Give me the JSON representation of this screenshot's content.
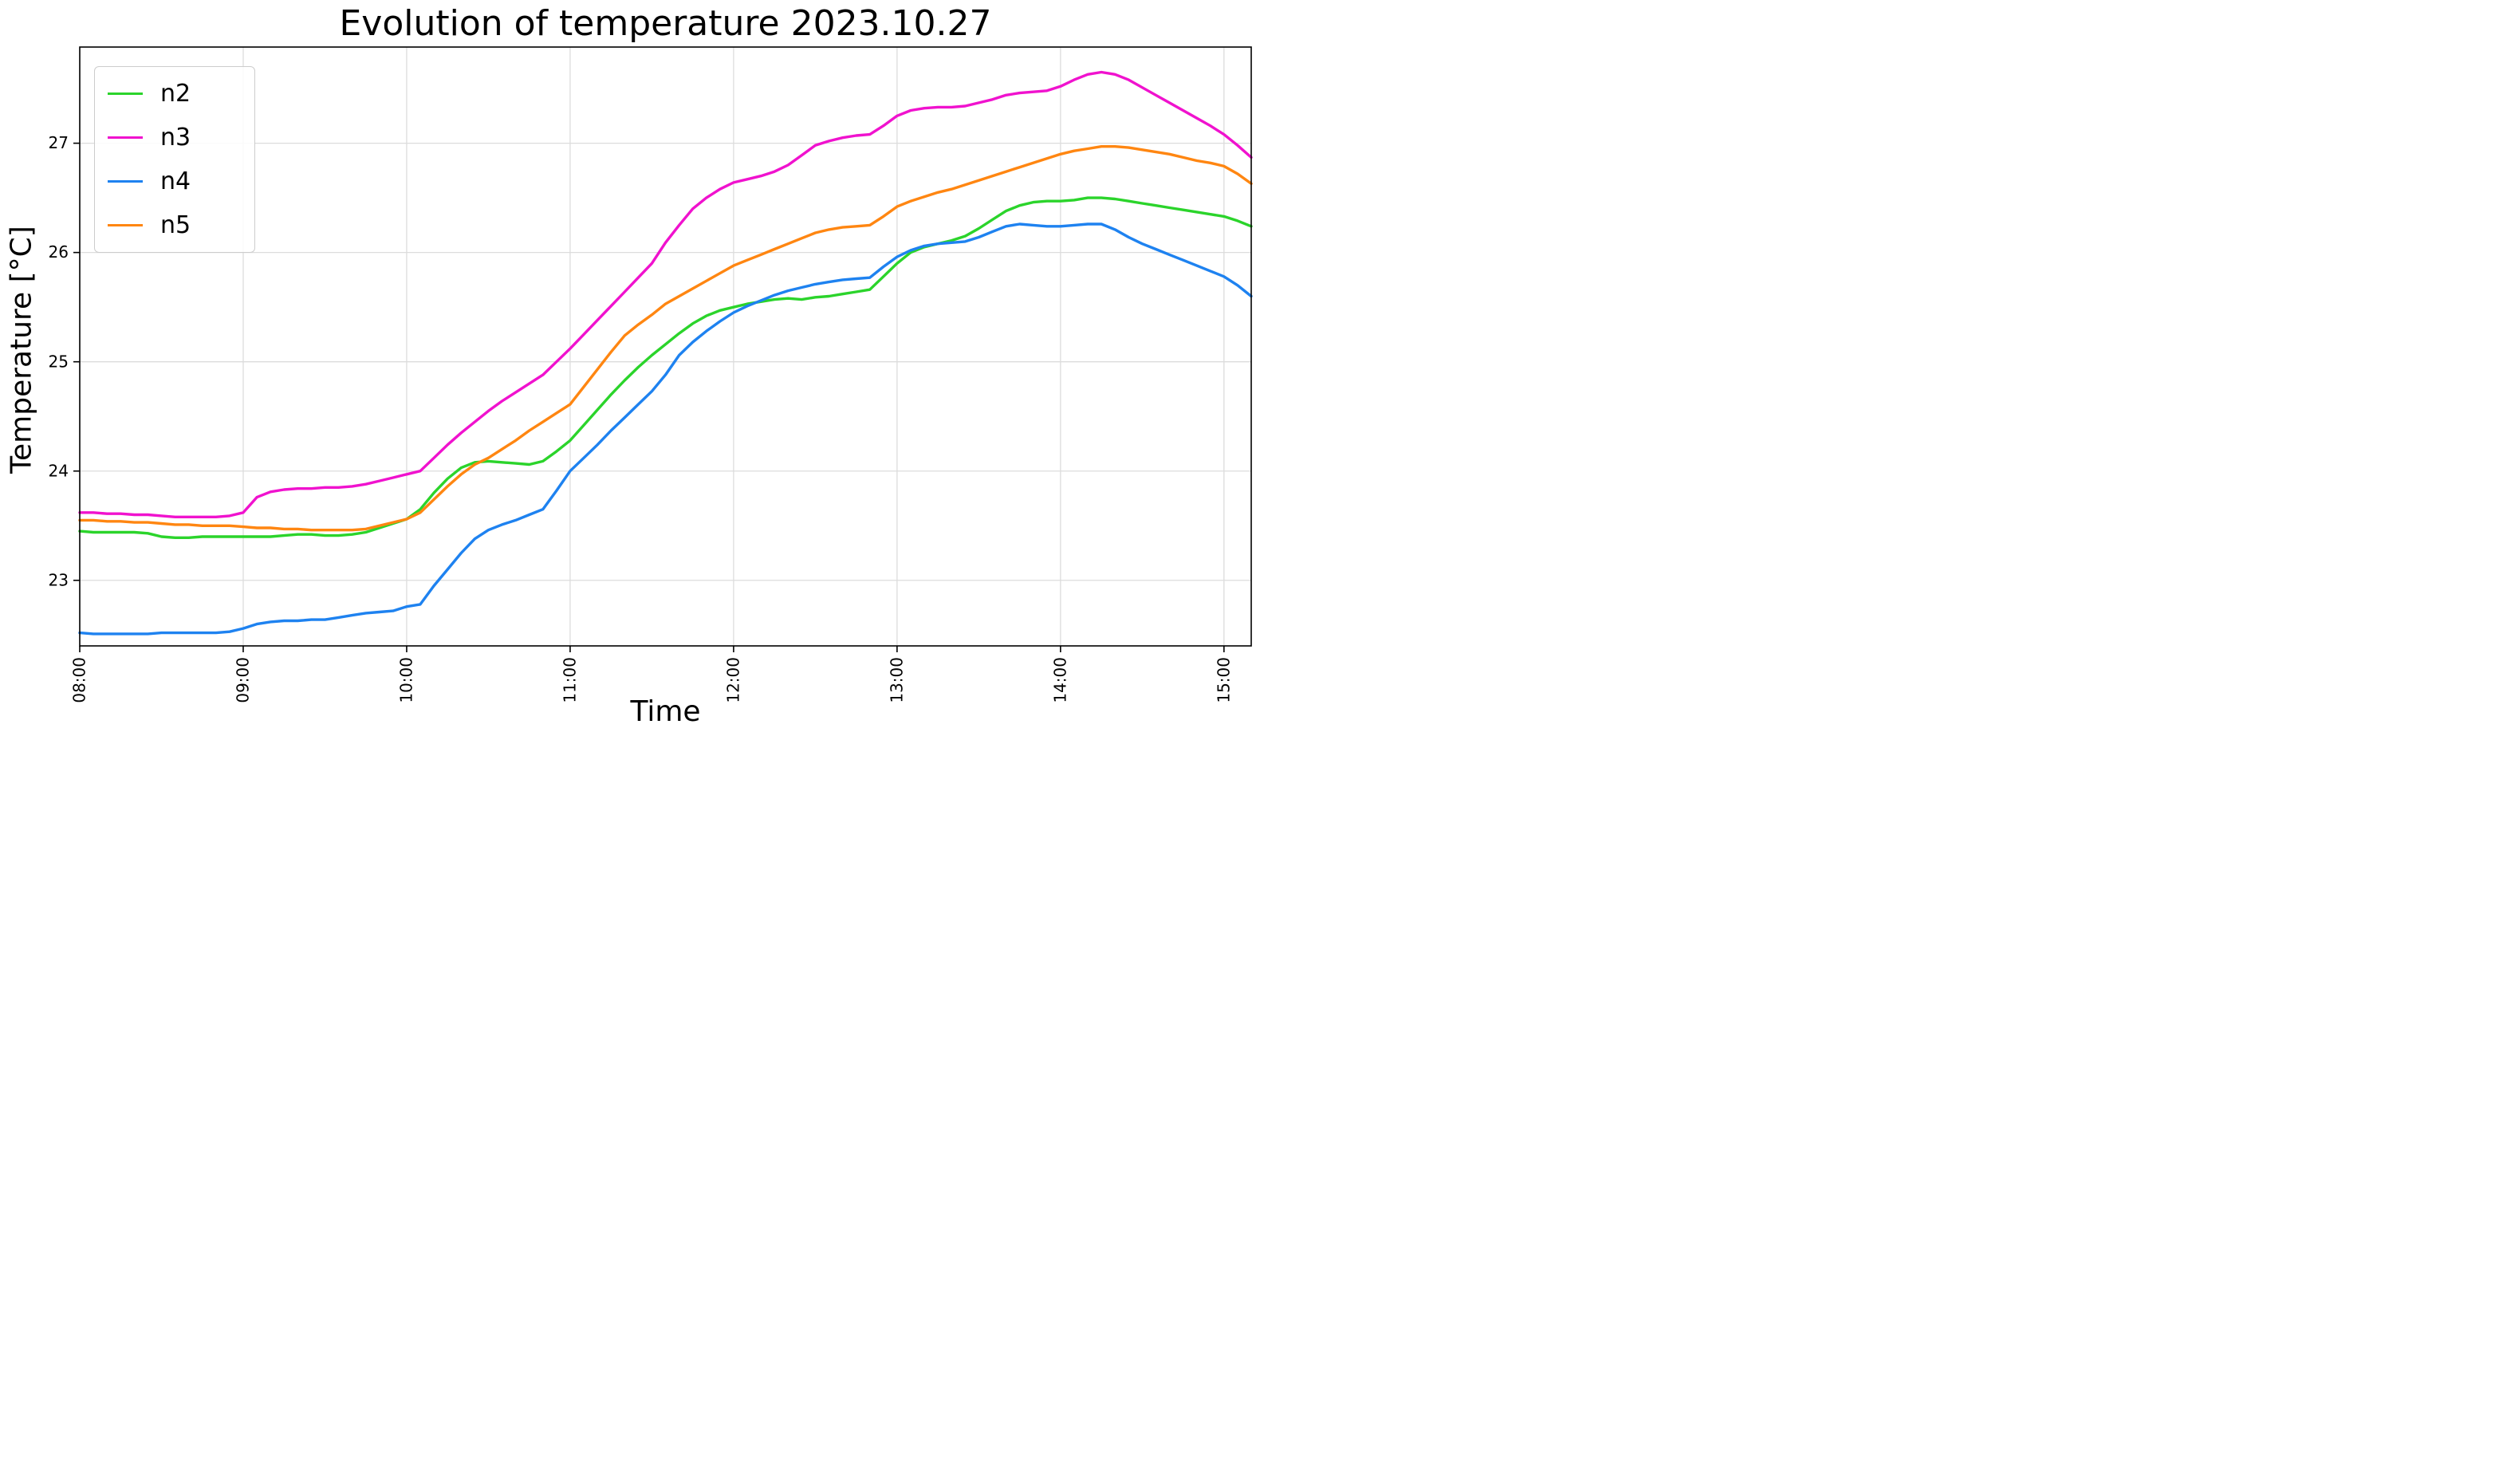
{
  "title": "Evolution of temperature 2023.10.27",
  "chart_data": {
    "type": "line",
    "title": "Evolution of temperature 2023.10.27",
    "xlabel": "Time",
    "ylabel": "Temperature [°C]",
    "grid": true,
    "legend_position": "upper left",
    "x_tick_labels": [
      "08:00",
      "09:00",
      "10:00",
      "11:00",
      "12:00",
      "13:00",
      "14:00",
      "15:00"
    ],
    "x_tick_hours": [
      8,
      9,
      10,
      11,
      12,
      13,
      14,
      15
    ],
    "y_ticks": [
      23,
      24,
      25,
      26,
      27
    ],
    "xlim_hours": [
      8.0,
      15.1667
    ],
    "ylim": [
      22.4,
      27.88
    ],
    "sample_interval_minutes": 5,
    "times": [
      "08:00",
      "08:05",
      "08:10",
      "08:15",
      "08:20",
      "08:25",
      "08:30",
      "08:35",
      "08:40",
      "08:45",
      "08:50",
      "08:55",
      "09:00",
      "09:05",
      "09:10",
      "09:15",
      "09:20",
      "09:25",
      "09:30",
      "09:35",
      "09:40",
      "09:45",
      "09:50",
      "09:55",
      "10:00",
      "10:05",
      "10:10",
      "10:15",
      "10:20",
      "10:25",
      "10:30",
      "10:35",
      "10:40",
      "10:45",
      "10:50",
      "10:55",
      "11:00",
      "11:05",
      "11:10",
      "11:15",
      "11:20",
      "11:25",
      "11:30",
      "11:35",
      "11:40",
      "11:45",
      "11:50",
      "11:55",
      "12:00",
      "12:05",
      "12:10",
      "12:15",
      "12:20",
      "12:25",
      "12:30",
      "12:35",
      "12:40",
      "12:45",
      "12:50",
      "12:55",
      "13:00",
      "13:05",
      "13:10",
      "13:15",
      "13:20",
      "13:25",
      "13:30",
      "13:35",
      "13:40",
      "13:45",
      "13:50",
      "13:55",
      "14:00",
      "14:05",
      "14:10",
      "14:15",
      "14:20",
      "14:25",
      "14:30",
      "14:35",
      "14:40",
      "14:45",
      "14:50",
      "14:55",
      "15:00",
      "15:05",
      "15:10"
    ],
    "series": [
      {
        "name": "n2",
        "color": "#2bd42b",
        "values": [
          23.45,
          23.44,
          23.44,
          23.44,
          23.44,
          23.43,
          23.4,
          23.39,
          23.39,
          23.4,
          23.4,
          23.4,
          23.4,
          23.4,
          23.4,
          23.41,
          23.42,
          23.42,
          23.41,
          23.41,
          23.42,
          23.44,
          23.48,
          23.52,
          23.56,
          23.65,
          23.8,
          23.93,
          24.03,
          24.08,
          24.09,
          24.08,
          24.07,
          24.06,
          24.09,
          24.18,
          24.28,
          24.42,
          24.56,
          24.7,
          24.83,
          24.95,
          25.06,
          25.16,
          25.26,
          25.35,
          25.42,
          25.47,
          25.5,
          25.53,
          25.55,
          25.57,
          25.58,
          25.57,
          25.59,
          25.6,
          25.62,
          25.64,
          25.66,
          25.78,
          25.9,
          26.0,
          26.05,
          26.08,
          26.11,
          26.15,
          26.22,
          26.3,
          26.38,
          26.43,
          26.46,
          26.47,
          26.47,
          26.48,
          26.5,
          26.5,
          26.49,
          26.47,
          26.45,
          26.43,
          26.41,
          26.39,
          26.37,
          26.35,
          26.33,
          26.29,
          26.24
        ]
      },
      {
        "name": "n3",
        "color": "#f012ce",
        "values": [
          23.62,
          23.62,
          23.61,
          23.61,
          23.6,
          23.6,
          23.59,
          23.58,
          23.58,
          23.58,
          23.58,
          23.59,
          23.62,
          23.76,
          23.81,
          23.83,
          23.84,
          23.84,
          23.85,
          23.85,
          23.86,
          23.88,
          23.91,
          23.94,
          23.97,
          24.0,
          24.12,
          24.24,
          24.35,
          24.45,
          24.55,
          24.64,
          24.72,
          24.8,
          24.88,
          25.0,
          25.12,
          25.25,
          25.38,
          25.51,
          25.64,
          25.77,
          25.9,
          26.09,
          26.25,
          26.4,
          26.5,
          26.58,
          26.64,
          26.67,
          26.7,
          26.74,
          26.8,
          26.89,
          26.98,
          27.02,
          27.05,
          27.07,
          27.08,
          27.16,
          27.25,
          27.3,
          27.32,
          27.33,
          27.33,
          27.34,
          27.37,
          27.4,
          27.44,
          27.46,
          27.47,
          27.48,
          27.52,
          27.58,
          27.63,
          27.65,
          27.63,
          27.58,
          27.51,
          27.44,
          27.37,
          27.3,
          27.23,
          27.16,
          27.08,
          26.98,
          26.87
        ]
      },
      {
        "name": "n4",
        "color": "#1e82f0",
        "values": [
          22.52,
          22.51,
          22.51,
          22.51,
          22.51,
          22.51,
          22.52,
          22.52,
          22.52,
          22.52,
          22.52,
          22.53,
          22.56,
          22.6,
          22.62,
          22.63,
          22.63,
          22.64,
          22.64,
          22.66,
          22.68,
          22.7,
          22.71,
          22.72,
          22.76,
          22.78,
          22.95,
          23.1,
          23.25,
          23.38,
          23.46,
          23.51,
          23.55,
          23.6,
          23.65,
          23.82,
          24.0,
          24.12,
          24.24,
          24.37,
          24.49,
          24.61,
          24.73,
          24.88,
          25.06,
          25.18,
          25.28,
          25.37,
          25.45,
          25.51,
          25.56,
          25.61,
          25.65,
          25.68,
          25.71,
          25.73,
          25.75,
          25.76,
          25.77,
          25.87,
          25.96,
          26.02,
          26.06,
          26.08,
          26.09,
          26.1,
          26.14,
          26.19,
          26.24,
          26.26,
          26.25,
          26.24,
          26.24,
          26.25,
          26.26,
          26.26,
          26.21,
          26.14,
          26.08,
          26.03,
          25.98,
          25.93,
          25.88,
          25.83,
          25.78,
          25.7,
          25.6
        ]
      },
      {
        "name": "n5",
        "color": "#ff8611",
        "values": [
          23.55,
          23.55,
          23.54,
          23.54,
          23.53,
          23.53,
          23.52,
          23.51,
          23.51,
          23.5,
          23.5,
          23.5,
          23.49,
          23.48,
          23.48,
          23.47,
          23.47,
          23.46,
          23.46,
          23.46,
          23.46,
          23.47,
          23.5,
          23.53,
          23.56,
          23.62,
          23.74,
          23.86,
          23.97,
          24.06,
          24.12,
          24.2,
          24.28,
          24.37,
          24.45,
          24.53,
          24.61,
          24.77,
          24.93,
          25.09,
          25.24,
          25.34,
          25.43,
          25.53,
          25.6,
          25.67,
          25.74,
          25.81,
          25.88,
          25.93,
          25.98,
          26.03,
          26.08,
          26.13,
          26.18,
          26.21,
          26.23,
          26.24,
          26.25,
          26.33,
          26.42,
          26.47,
          26.51,
          26.55,
          26.58,
          26.62,
          26.66,
          26.7,
          26.74,
          26.78,
          26.82,
          26.86,
          26.9,
          26.93,
          26.95,
          26.97,
          26.97,
          26.96,
          26.94,
          26.92,
          26.9,
          26.87,
          26.84,
          26.82,
          26.79,
          26.72,
          26.63
        ]
      }
    ]
  }
}
